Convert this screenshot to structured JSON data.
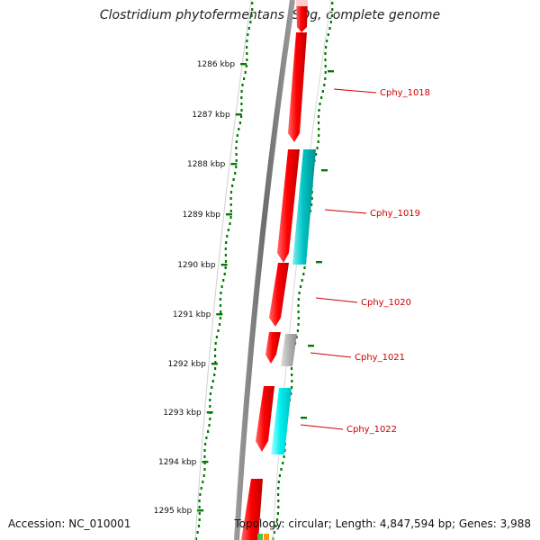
{
  "title": "Clostridium phytofermentans ISDg, complete genome",
  "accession": "Accession: NC_010001",
  "footer_info": "Topology: circular; Length: 4,847,594 bp; Genes: 3,988",
  "colors": {
    "backbone": "#777777",
    "cds_forward": "#ff0000",
    "cds_reverse_a": "#00c8c8",
    "cds_reverse_b": "#00eeee",
    "cds_grey": "#b0b0b0",
    "gc_dots": "#007a00",
    "label_color": "#cc0000"
  },
  "kbp_ticks": [
    "1286 kbp",
    "1287 kbp",
    "1288 kbp",
    "1289 kbp",
    "1290 kbp",
    "1291 kbp",
    "1292 kbp",
    "1293 kbp",
    "1294 kbp",
    "1295 kbp"
  ],
  "gene_labels": [
    "Cphy_1018",
    "Cphy_1019",
    "Cphy_1020",
    "Cphy_1021",
    "Cphy_1022"
  ]
}
